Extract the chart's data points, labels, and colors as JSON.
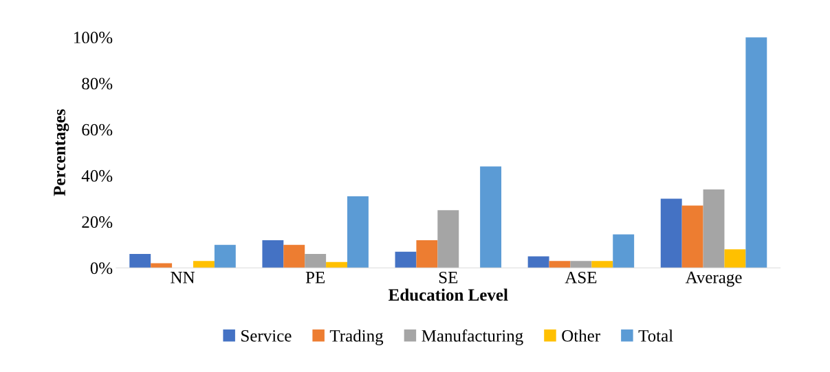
{
  "chart_data": {
    "type": "bar",
    "xlabel": "Education Level",
    "ylabel": "Percentages",
    "categories": [
      "NN",
      "PE",
      "SE",
      "ASE",
      "Average"
    ],
    "series": [
      {
        "name": "Service",
        "color": "#4472c4",
        "values": [
          6,
          12,
          7,
          5,
          30
        ]
      },
      {
        "name": "Trading",
        "color": "#ed7d31",
        "values": [
          2,
          10,
          12,
          3,
          27
        ]
      },
      {
        "name": "Manufacturing",
        "color": "#a5a5a5",
        "values": [
          0,
          6,
          25,
          3,
          34
        ]
      },
      {
        "name": "Other",
        "color": "#ffc000",
        "values": [
          3,
          2.5,
          0,
          3,
          8
        ]
      },
      {
        "name": "Total",
        "color": "#5b9bd5",
        "values": [
          10,
          31,
          44,
          14.5,
          100
        ]
      }
    ],
    "ylim": [
      0,
      100
    ],
    "yticks": [
      {
        "value": 0,
        "label": "0%"
      },
      {
        "value": 20,
        "label": "20%"
      },
      {
        "value": 40,
        "label": "40%"
      },
      {
        "value": 60,
        "label": "60%"
      },
      {
        "value": 80,
        "label": "80%"
      },
      {
        "value": 100,
        "label": "100%"
      }
    ],
    "grid": false,
    "legend": "bottom"
  }
}
